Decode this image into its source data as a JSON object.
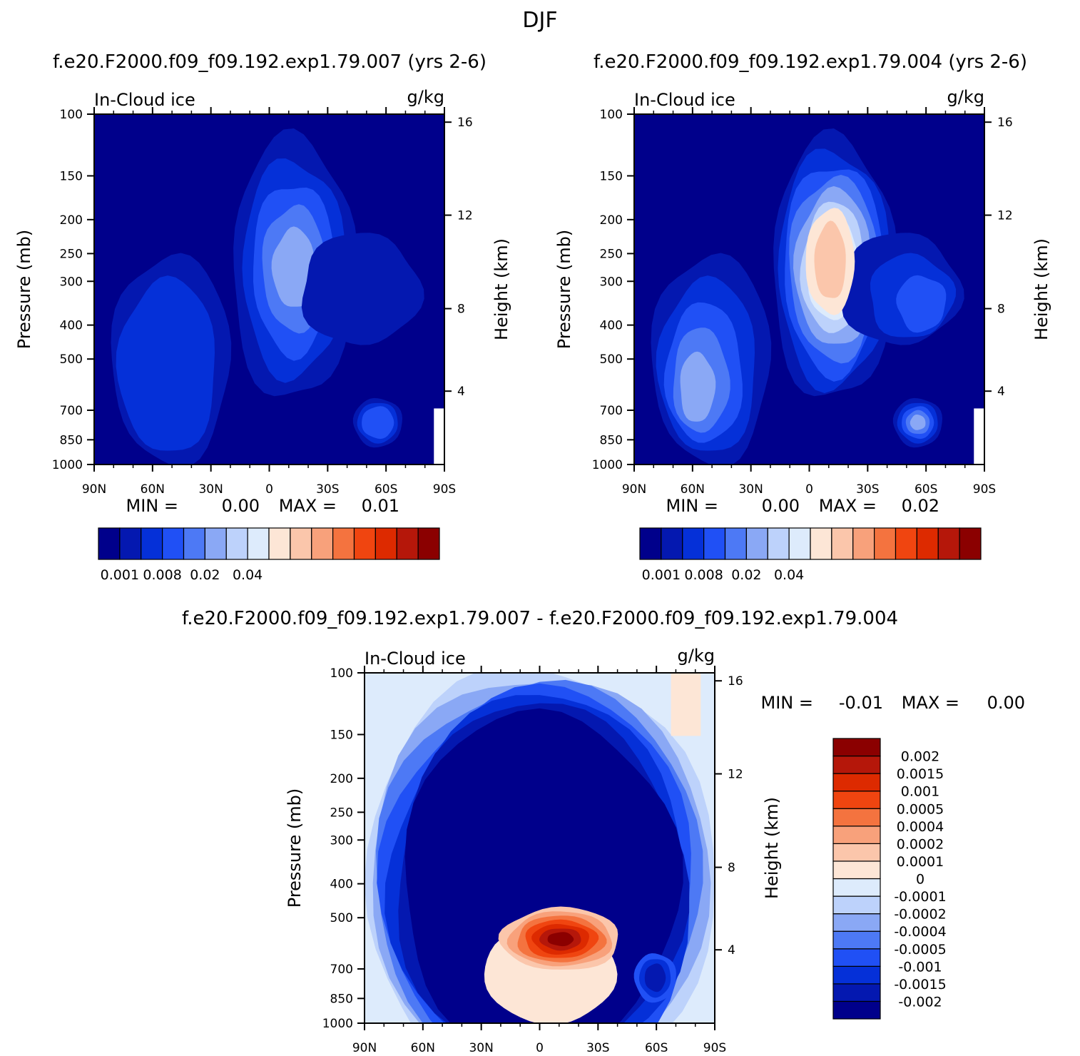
{
  "figure": {
    "title": "DJF",
    "case1_title": "f.e20.F2000.f09_f09.192.exp1.79.007 (yrs 2-6)",
    "case2_title": "f.e20.F2000.f09_f09.192.exp1.79.004 (yrs 2-6)",
    "diff_title": "f.e20.F2000.f09_f09.192.exp1.79.007 - f.e20.F2000.f09_f09.192.exp1.79.004"
  },
  "colors": {
    "full": [
      "#00008b",
      "#0418b0",
      "#0530d8",
      "#2050f5",
      "#4d79f5",
      "#8aa8f5",
      "#bdd2fb",
      "#ddebfc",
      "#fde6d6",
      "#fbc6ab",
      "#f8a17b",
      "#f4733f",
      "#f04510",
      "#dd2a00",
      "#b5170a",
      "#8b0000"
    ],
    "diff": [
      "#00008b",
      "#0418b0",
      "#0530d8",
      "#2050f5",
      "#4d79f5",
      "#8aa8f5",
      "#bdd2fb",
      "#ddebfc",
      "#fde6d6",
      "#fbc6ab",
      "#f8a17b",
      "#f4733f",
      "#f04510",
      "#dd2a00",
      "#b5170a",
      "#8b0000"
    ]
  },
  "chart_data": [
    {
      "type": "contour",
      "panel": "case1",
      "left_title": "In-Cloud ice",
      "units": "g/kg",
      "ylabel": "Pressure (mb)",
      "ylabel_right": "Height (km)",
      "xticks": [
        "90N",
        "60N",
        "30N",
        "0",
        "30S",
        "60S",
        "90S"
      ],
      "yticks": [
        "100",
        "150",
        "200",
        "250",
        "300",
        "400",
        "500",
        "700",
        "850",
        "1000"
      ],
      "yticks_right": [
        "16",
        "12",
        "8",
        "4"
      ],
      "min_label": "MIN =",
      "min_value": "0.00",
      "max_label": "MAX =",
      "max_value": "0.01",
      "colorbar_labels": [
        "0.001",
        "0.008",
        "0.02",
        "0.04"
      ]
    },
    {
      "type": "contour",
      "panel": "case2",
      "left_title": "In-Cloud ice",
      "units": "g/kg",
      "ylabel": "Pressure (mb)",
      "ylabel_right": "Height (km)",
      "xticks": [
        "90N",
        "60N",
        "30N",
        "0",
        "30S",
        "60S",
        "90S"
      ],
      "yticks": [
        "100",
        "150",
        "200",
        "250",
        "300",
        "400",
        "500",
        "700",
        "850",
        "1000"
      ],
      "yticks_right": [
        "16",
        "12",
        "8",
        "4"
      ],
      "min_label": "MIN =",
      "min_value": "0.00",
      "max_label": "MAX =",
      "max_value": "0.02",
      "colorbar_labels": [
        "0.001",
        "0.008",
        "0.02",
        "0.04"
      ]
    },
    {
      "type": "contour",
      "panel": "difference",
      "left_title": "In-Cloud ice",
      "units": "g/kg",
      "ylabel": "Pressure (mb)",
      "ylabel_right": "Height (km)",
      "xticks": [
        "90N",
        "60N",
        "30N",
        "0",
        "30S",
        "60S",
        "90S"
      ],
      "yticks": [
        "100",
        "150",
        "200",
        "250",
        "300",
        "400",
        "500",
        "700",
        "850",
        "1000"
      ],
      "yticks_right": [
        "16",
        "12",
        "8",
        "4"
      ],
      "min_label": "MIN =",
      "min_value": "-0.01",
      "max_label": "MAX =",
      "max_value": "0.00",
      "colorbar_labels": [
        "0.002",
        "0.0015",
        "0.001",
        "0.0005",
        "0.0004",
        "0.0002",
        "0.0001",
        "0",
        "-0.0001",
        "-0.0002",
        "-0.0004",
        "-0.0005",
        "-0.001",
        "-0.0015",
        "-0.002"
      ]
    }
  ]
}
